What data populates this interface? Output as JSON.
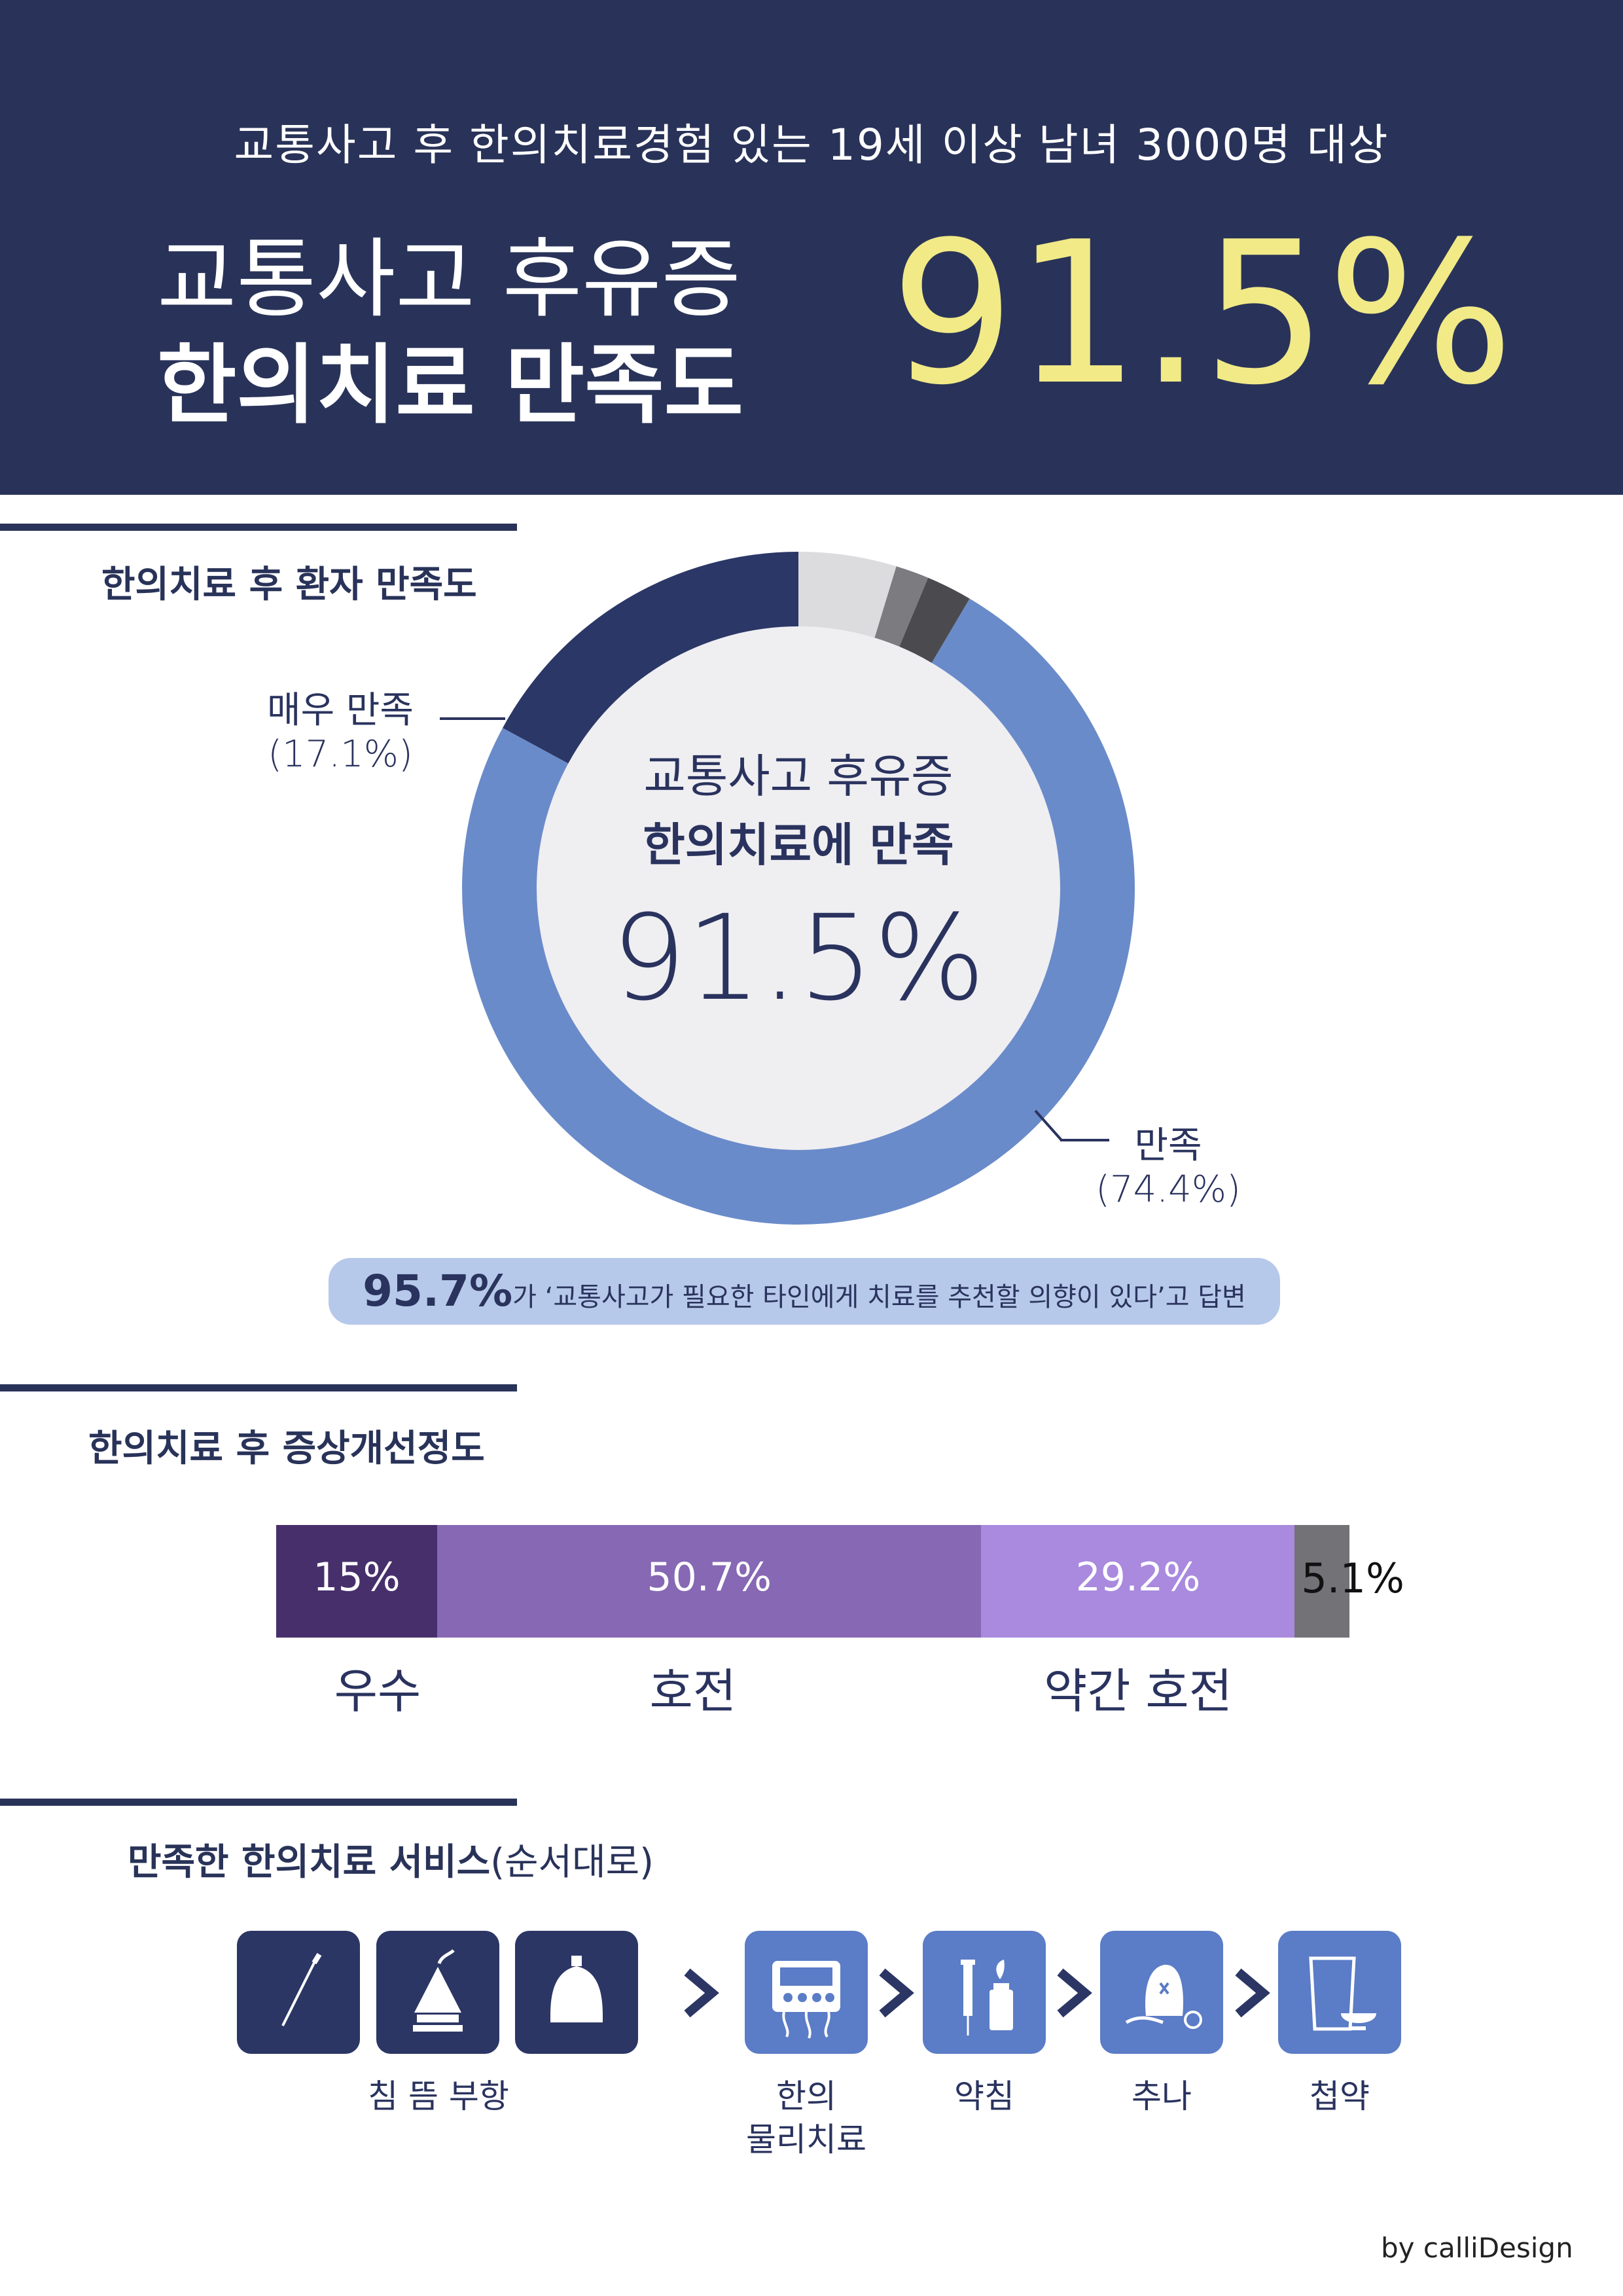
{
  "header": {
    "subtitle": "교통사고 후 한의치료경험 있는 19세 이상 남녀 3000명 대상",
    "title_line1": "교통사고 후유증",
    "title_line2": "한의치료 만족도",
    "highlight_value": "91.5%"
  },
  "colors": {
    "navy": "#293359",
    "yellow_highlight": "#f1ea87",
    "satisfied_blue": "#6a8bca",
    "very_satisfied_navy": "#2b3766",
    "pill_bg": "#b7c9ea",
    "bar_excellent": "#472f6b",
    "bar_improved": "#8768b4",
    "bar_slightly": "#a98ade",
    "bar_other": "#727277",
    "tile_navy": "#2b3664",
    "tile_blue": "#5b7cc6"
  },
  "section1": {
    "title": "한의치료 후 환자 만족도",
    "center_line1": "교통사고 후유증",
    "center_line2": "한의치료에 만족",
    "center_value": "91.5%",
    "label_very_satisfied": "매우 만족",
    "label_very_satisfied_pct": "(17.1%)",
    "label_satisfied": "만족",
    "label_satisfied_pct": "(74.4%)",
    "recommend_value": "95.7%",
    "recommend_text": "가 ‘교통사고가 필요한 타인에게 치료를 추천할 의향이 있다’고 답변"
  },
  "section2": {
    "title": "한의치료 후 증상개선정도",
    "bars": [
      {
        "value_label": "15%",
        "category": "우수"
      },
      {
        "value_label": "50.7%",
        "category": "호전"
      },
      {
        "value_label": "29.2%",
        "category": "약간 호전"
      },
      {
        "value_label": "5.1%",
        "category": ""
      }
    ]
  },
  "section3": {
    "title_bold": "만족한 한의치료 서비스",
    "title_light": "(순서대로)",
    "group1_label": "침 뜸 부항",
    "physio_label_line1": "한의",
    "physio_label_line2": "물리치료",
    "pharma_label": "약침",
    "chuna_label": "추나",
    "herbal_label": "첩약",
    "icons": [
      "acupuncture-needle-icon",
      "moxibustion-icon",
      "cupping-icon",
      "physiotherapy-device-icon",
      "pharmacopuncture-icon",
      "chuna-icon",
      "herbal-medicine-icon"
    ]
  },
  "chart_data": [
    {
      "type": "pie",
      "title": "",
      "categories": [
        "매우 만족",
        "만족",
        "",
        "",
        ""
      ],
      "values": [
        17.1,
        74.4,
        2.2,
        1.6,
        4.7
      ],
      "center_label": "91.5%"
    },
    {
      "type": "bar",
      "title": "한의치료 후 증상개선정도",
      "categories": [
        "우수",
        "호전",
        "약간 호전",
        ""
      ],
      "values": [
        15,
        50.7,
        29.2,
        5.1
      ],
      "stacked": true,
      "orientation": "horizontal"
    }
  ],
  "credit": "by calliDesign"
}
